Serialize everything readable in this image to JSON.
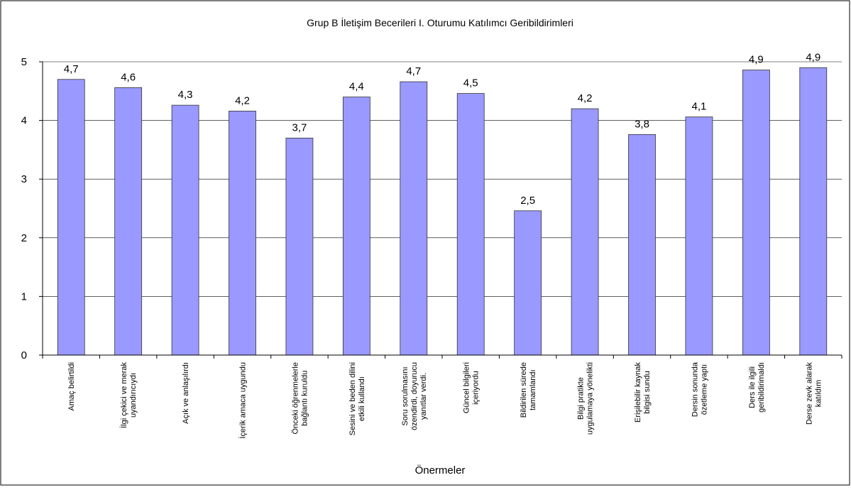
{
  "chart_data": {
    "type": "bar",
    "title": "Grup B İletişim Becerileri I. Oturumu Katılımcı Geribildirimleri",
    "x_label": "Önermeler",
    "categories": [
      "Amaç belirtildi",
      "İlgi çekici ve merak\nuyandırıcıydı",
      "Açık ve anlaşılırdı",
      "İçerik amaca uygundu",
      "Önceki öğrenmelerle\nbağlantı kuruldu",
      "Sesini ve beden dilini\netkili kullandı",
      "Soru sorulmasını\nözendirdi, doyurucu\nyanıtlar verdi.",
      "Güncel bilgileri\niçeriyordu",
      "Bildirilen sürede\ntamamlandı",
      "Bilgi pratikte\nuygulamaya yönelikti",
      "Erişilebilir kaynak\nbilgisi sundu",
      "Dersin sonunda\nözetleme yaptı",
      "Ders ile ilgili\ngeribildirimaldı",
      "Derse zevk alarak\nkatıldım"
    ],
    "values": [
      4.7,
      4.56,
      4.26,
      4.16,
      3.7,
      4.4,
      4.66,
      4.46,
      2.46,
      4.2,
      3.76,
      4.06,
      4.86,
      4.9
    ],
    "value_labels": [
      "4,7",
      "4,6",
      "4,3",
      "4,2",
      "3,7",
      "4,4",
      "4,7",
      "4,5",
      "2,5",
      "4,2",
      "3,8",
      "4,1",
      "4,9",
      "4,9"
    ],
    "color": "#9999ff",
    "ylim": [
      0,
      5
    ],
    "yticks": [
      0,
      1,
      2,
      3,
      4,
      5
    ],
    "grid": true
  }
}
